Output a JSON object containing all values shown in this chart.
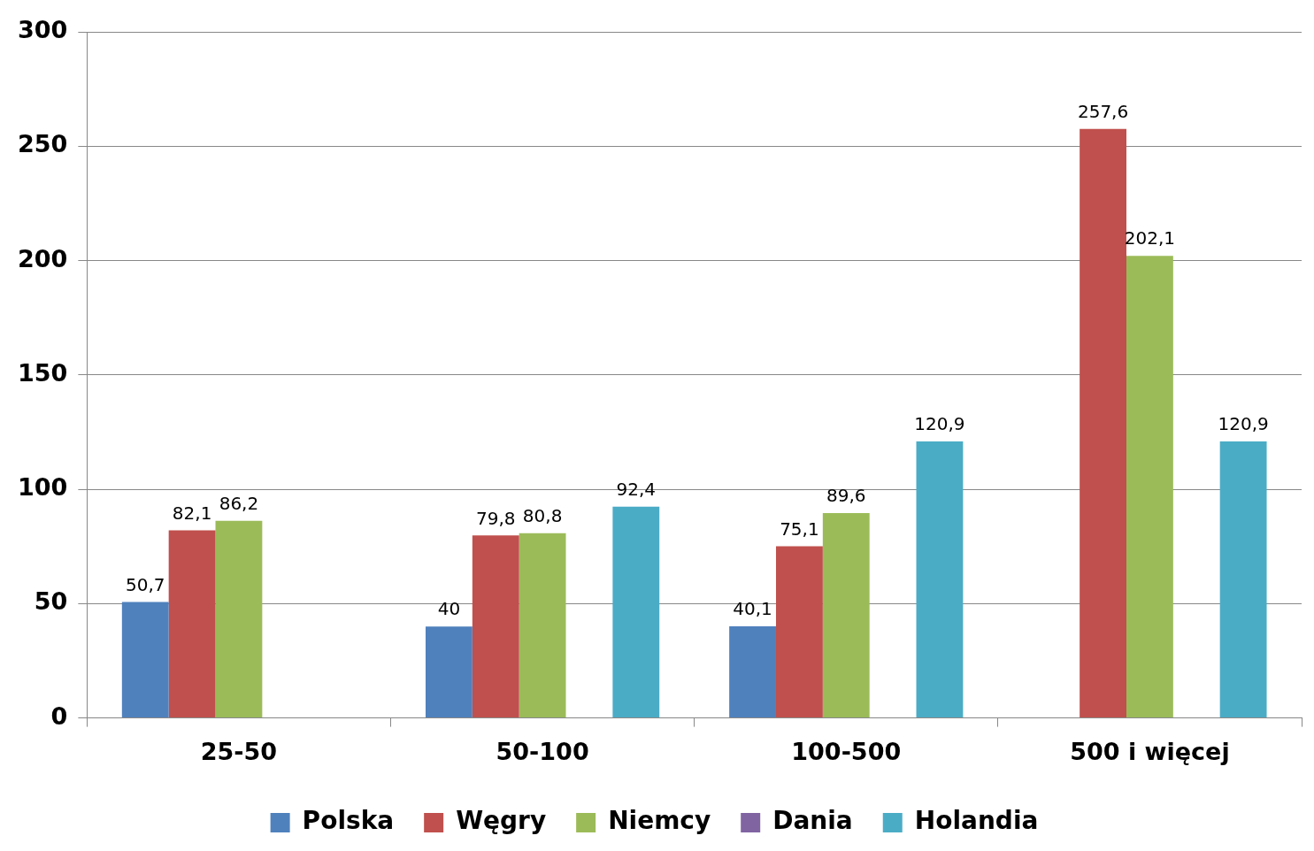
{
  "chart_data": {
    "type": "bar",
    "categories": [
      "25-50",
      "50-100",
      "100-500",
      "500 i więcej"
    ],
    "series": [
      {
        "name": "Polska",
        "color": "#4f81bd",
        "values": [
          50.7,
          40,
          40.1,
          null
        ],
        "value_labels": [
          "50,7",
          "40",
          "40,1",
          null
        ]
      },
      {
        "name": "Węgry",
        "color": "#c0504d",
        "values": [
          82.1,
          79.8,
          75.1,
          257.6
        ],
        "value_labels": [
          "82,1",
          "79,8",
          "75,1",
          "257,6"
        ]
      },
      {
        "name": "Niemcy",
        "color": "#9bbb59",
        "values": [
          86.2,
          80.8,
          89.6,
          202.1
        ],
        "value_labels": [
          "86,2",
          "80,8",
          "89,6",
          "202,1"
        ]
      },
      {
        "name": "Dania",
        "color": "#8064a2",
        "values": [
          null,
          null,
          null,
          null
        ]
      },
      {
        "name": "Holandia",
        "color": "#4bacc6",
        "values": [
          null,
          92.4,
          120.9,
          120.9
        ],
        "value_labels": [
          null,
          "92,4",
          "120,9",
          "120,9"
        ]
      }
    ],
    "ylim": [
      0,
      300
    ],
    "yticks": [
      0,
      50,
      100,
      150,
      200,
      250,
      300
    ],
    "grid": "y",
    "legend": "bottom"
  }
}
